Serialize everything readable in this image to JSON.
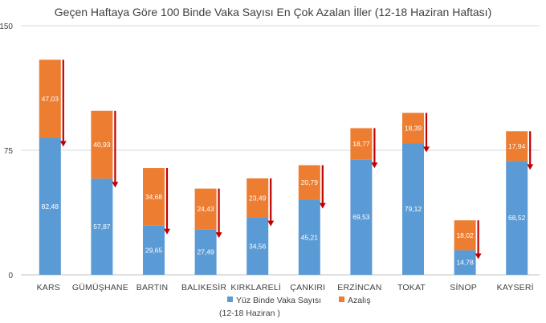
{
  "chart_data": {
    "type": "bar",
    "stacked": true,
    "title": "Geçen Haftaya Göre 100 Binde Vaka Sayısı En Çok Azalan İller (12-18 Haziran Haftası)",
    "xlabel": "",
    "ylabel": "",
    "ylim": [
      0,
      150
    ],
    "yticks": [
      0,
      75,
      150
    ],
    "grid": true,
    "legend_position": "bottom",
    "categories": [
      "KARS",
      "GÜMÜŞHANE",
      "BARTIN",
      "BALIKESİR",
      "KIRKLARELİ",
      "ÇANKIRI",
      "ERZİNCAN",
      "TOKAT",
      "SİNOP",
      "KAYSERİ"
    ],
    "series": [
      {
        "name": "Yüz Binde Vaka Sayısı (12-18 Haziran )",
        "legend_line1": "Yüz Binde Vaka Sayısı",
        "legend_line2": "(12-18 Haziran )",
        "color": "#5b9bd5",
        "values": [
          82.48,
          57.87,
          29.65,
          27.49,
          34.56,
          45.21,
          69.53,
          79.12,
          14.78,
          68.52
        ],
        "labels": [
          "82,48",
          "57,87",
          "29,65",
          "27,49",
          "34,56",
          "45,21",
          "69,53",
          "79,12",
          "14,78",
          "68,52"
        ]
      },
      {
        "name": "Azalış",
        "color": "#ed7d31",
        "values": [
          47.03,
          40.93,
          34.68,
          24.43,
          23.49,
          20.79,
          18.77,
          18.39,
          18.02,
          17.94
        ],
        "labels": [
          "47,03",
          "40,93",
          "34,68",
          "24,43",
          "23,49",
          "20,79",
          "18,77",
          "18,39",
          "18,02",
          "17,94"
        ]
      }
    ],
    "arrow_color": "#c00000",
    "grid_color": "#d9d9d9"
  }
}
